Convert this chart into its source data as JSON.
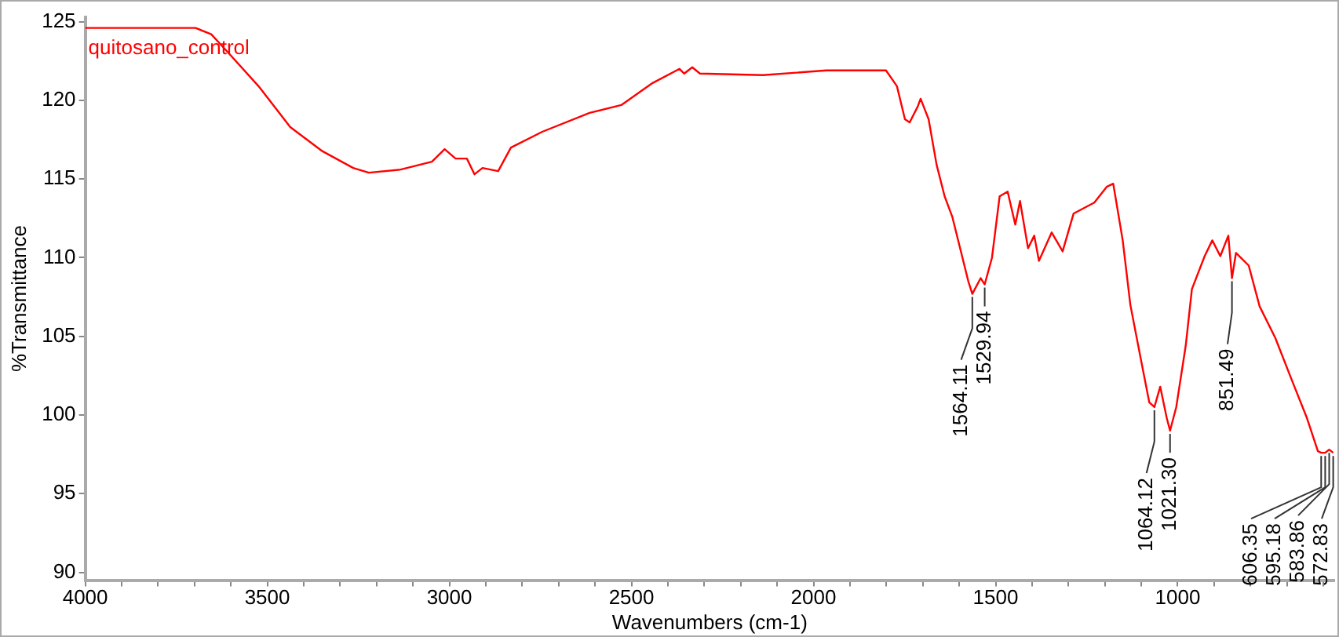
{
  "chart_data": {
    "type": "line",
    "xlabel": "Wavenumbers (cm-1)",
    "ylabel": "%Transmittance",
    "x": [
      4000,
      3870,
      3697,
      3654,
      3610,
      3524,
      3437,
      3351,
      3264,
      3221,
      3134,
      3048,
      3013,
      2983,
      2952,
      2931,
      2909,
      2866,
      2831,
      2745,
      2615,
      2528,
      2442,
      2368,
      2355,
      2333,
      2312,
      2139,
      1965,
      1801,
      1771,
      1749,
      1736,
      1714,
      1706,
      1684,
      1662,
      1640,
      1619,
      1575,
      1564,
      1541,
      1530,
      1510,
      1489,
      1467,
      1446,
      1433,
      1411,
      1394,
      1381,
      1346,
      1316,
      1286,
      1229,
      1195,
      1177,
      1151,
      1130,
      1100,
      1078,
      1064,
      1048,
      1030,
      1021,
      1004,
      978,
      961,
      926,
      905,
      883,
      861,
      851,
      840,
      805,
      775,
      732,
      688,
      645,
      615,
      606,
      595,
      584,
      573
    ],
    "series": [
      {
        "name": "quitosano_control",
        "color": "#ff0000",
        "values": [
          124.6,
          124.6,
          124.6,
          124.2,
          123.1,
          120.9,
          118.3,
          116.8,
          115.7,
          115.4,
          115.6,
          116.1,
          116.9,
          116.3,
          116.3,
          115.3,
          115.7,
          115.5,
          117.0,
          118.0,
          119.2,
          119.7,
          121.1,
          122.0,
          121.7,
          122.1,
          121.7,
          121.6,
          121.9,
          121.9,
          120.9,
          118.8,
          118.6,
          119.6,
          120.1,
          118.8,
          115.9,
          113.9,
          112.6,
          108.5,
          107.7,
          108.7,
          108.3,
          110.0,
          113.9,
          114.2,
          112.1,
          113.6,
          110.6,
          111.4,
          109.8,
          111.6,
          110.4,
          112.8,
          113.5,
          114.5,
          114.7,
          111.1,
          107.0,
          103.4,
          100.8,
          100.5,
          101.8,
          99.8,
          99.0,
          100.5,
          104.4,
          108.0,
          110.1,
          111.1,
          110.1,
          111.4,
          108.7,
          110.3,
          109.5,
          106.9,
          104.9,
          102.3,
          99.8,
          97.7,
          97.6,
          97.6,
          97.8,
          97.6
        ]
      }
    ],
    "xlim": [
      4000,
      570
    ],
    "ylim": [
      89.5,
      125.3
    ],
    "xticks": [
      4000,
      {
        "value": 3900,
        "label": null
      },
      {
        "value": 3800,
        "label": null
      },
      {
        "value": 3700,
        "label": null
      },
      {
        "value": 3600,
        "label": null
      },
      3500,
      {
        "value": 3400,
        "label": null
      },
      {
        "value": 3300,
        "label": null
      },
      {
        "value": 3200,
        "label": null
      },
      {
        "value": 3100,
        "label": null
      },
      3000,
      {
        "value": 2900,
        "label": null
      },
      {
        "value": 2800,
        "label": null
      },
      {
        "value": 2700,
        "label": null
      },
      {
        "value": 2600,
        "label": null
      },
      2500,
      {
        "value": 2400,
        "label": null
      },
      {
        "value": 2300,
        "label": null
      },
      {
        "value": 2200,
        "label": null
      },
      {
        "value": 2100,
        "label": null
      },
      2000,
      {
        "value": 1900,
        "label": null
      },
      {
        "value": 1800,
        "label": null
      },
      {
        "value": 1700,
        "label": null
      },
      {
        "value": 1600,
        "label": null
      },
      1500,
      {
        "value": 1400,
        "label": null
      },
      {
        "value": 1300,
        "label": null
      },
      {
        "value": 1200,
        "label": null
      },
      {
        "value": 1100,
        "label": null
      },
      1000,
      {
        "value": 900,
        "label": null
      },
      {
        "value": 800,
        "label": null
      },
      {
        "value": 700,
        "label": null
      },
      {
        "value": 600,
        "label": null
      }
    ],
    "yticks": [
      90,
      95,
      100,
      105,
      110,
      115,
      120,
      125
    ],
    "legend": "top left",
    "grid": false,
    "marker": "none",
    "line_style": "solid",
    "annotations": [
      {
        "text": "1564.11",
        "x": 1564,
        "y": 107.7
      },
      {
        "text": "1529.94",
        "x": 1530,
        "y": 108.3
      },
      {
        "text": "1064.12",
        "x": 1064,
        "y": 100.5
      },
      {
        "text": "1021.30",
        "x": 1021,
        "y": 99.0
      },
      {
        "text": "851.49",
        "x": 851,
        "y": 108.7
      },
      {
        "text": "606.35",
        "x": 606,
        "y": 97.6
      },
      {
        "text": "595.18",
        "x": 595,
        "y": 97.6
      },
      {
        "text": "583.86",
        "x": 584,
        "y": 97.8
      },
      {
        "text": "572.83",
        "x": 573,
        "y": 97.6
      }
    ]
  }
}
